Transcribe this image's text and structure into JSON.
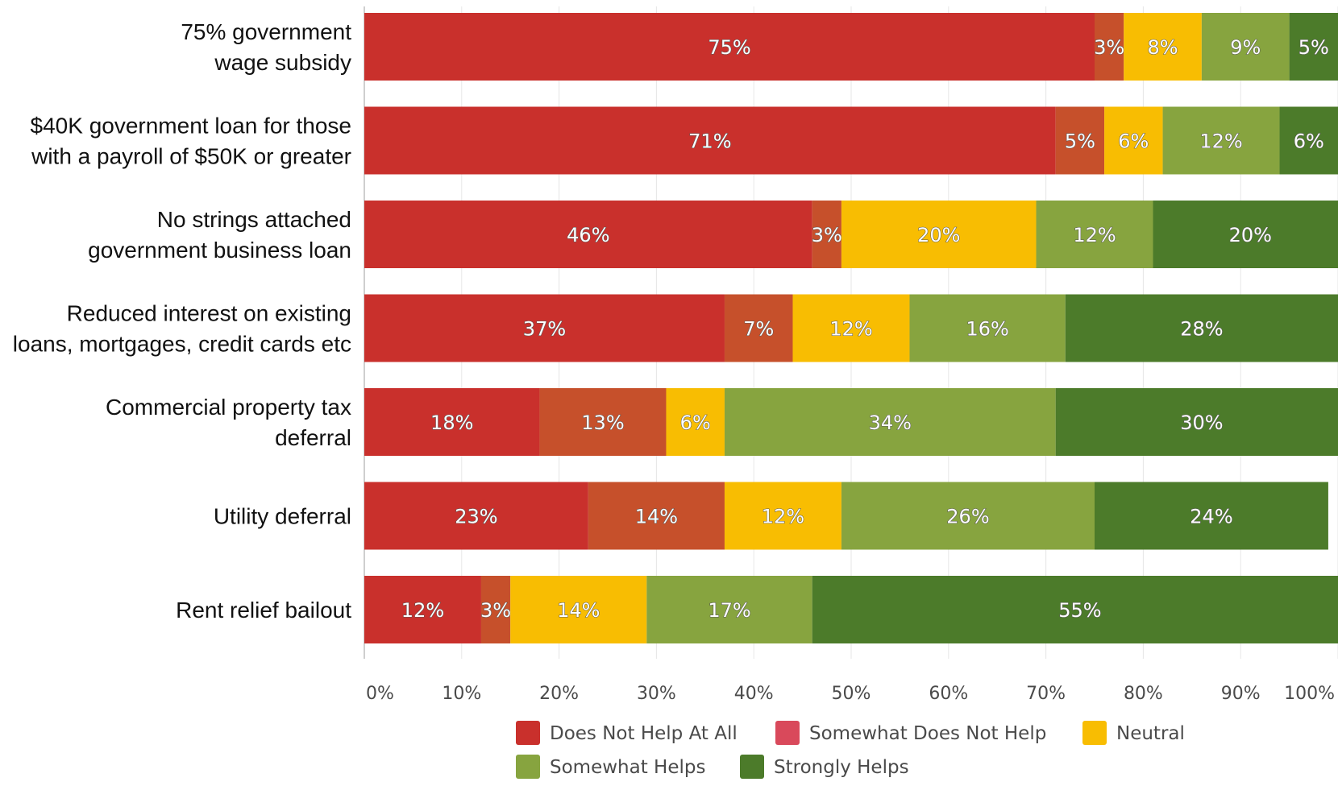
{
  "chart_data": {
    "type": "bar",
    "orientation": "horizontal",
    "stacked": true,
    "title": "",
    "xlabel": "",
    "ylabel": "",
    "xlim": [
      0,
      100
    ],
    "x_ticks": [
      "0%",
      "10%",
      "20%",
      "30%",
      "40%",
      "50%",
      "60%",
      "70%",
      "80%",
      "90%",
      "100%"
    ],
    "grid": true,
    "legend_position": "bottom",
    "categories": [
      [
        "75% government",
        "wage subsidy"
      ],
      [
        "$40K government loan for those",
        "with a payroll of $50K or greater"
      ],
      [
        "No strings attached",
        "government business loan"
      ],
      [
        "Reduced interest on existing",
        "loans, mortgages, credit cards etc"
      ],
      [
        "Commercial property tax",
        "deferral"
      ],
      [
        "Utility deferral"
      ],
      [
        "Rent relief bailout"
      ]
    ],
    "series": [
      {
        "name": "Does Not Help At All",
        "color": "#c9302c",
        "values": [
          75,
          71,
          46,
          37,
          18,
          23,
          12
        ]
      },
      {
        "name": "Somewhat Does Not Help",
        "color": "#c6502b",
        "legend_color": "#d9495b",
        "values": [
          3,
          5,
          3,
          7,
          13,
          14,
          3
        ]
      },
      {
        "name": "Neutral",
        "color": "#f8bd02",
        "values": [
          8,
          6,
          20,
          12,
          6,
          12,
          14
        ]
      },
      {
        "name": "Somewhat Helps",
        "color": "#87a43f",
        "values": [
          9,
          12,
          12,
          16,
          34,
          26,
          17
        ]
      },
      {
        "name": "Strongly Helps",
        "color": "#4c7b2a",
        "values": [
          5,
          6,
          20,
          28,
          30,
          24,
          55
        ]
      }
    ]
  }
}
